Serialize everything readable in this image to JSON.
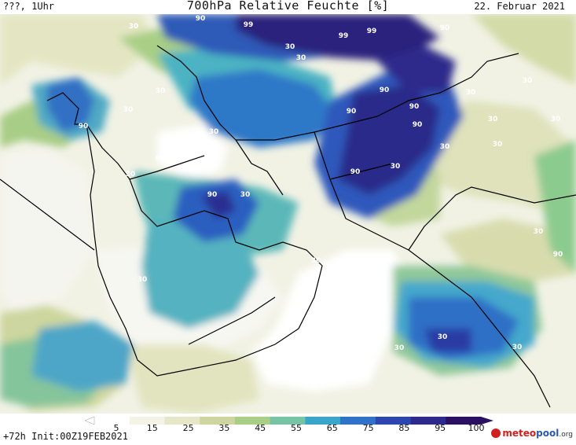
{
  "header": {
    "left": "???, 1Uhr",
    "title": "700hPa Relative Feuchte [%]",
    "date": "22. Februar 2021"
  },
  "colorbar": {
    "ticks": [
      "5",
      "15",
      "25",
      "35",
      "45",
      "55",
      "65",
      "75",
      "85",
      "95",
      "100"
    ],
    "colors": [
      "#ffffff",
      "#f3f3e6",
      "#e6e7c9",
      "#cfd5a0",
      "#a9cf86",
      "#78c3a4",
      "#39a6c9",
      "#2f72c8",
      "#2c46b0",
      "#2e2a8c",
      "#2a1060"
    ]
  },
  "footer": {
    "init": "+72h Init:00Z19FEB2021",
    "logo_part1": "meteo",
    "logo_part2": "pool",
    "logo_part3": ".org"
  },
  "map": {
    "contour_labels": [
      "30",
      "90",
      "99",
      "99",
      "99",
      "90",
      "30",
      "30",
      "30",
      "90",
      "30",
      "30",
      "90",
      "90",
      "90",
      "30",
      "30",
      "30",
      "30",
      "90",
      "30",
      "30",
      "90",
      "90",
      "30",
      "30",
      "30",
      "90",
      "30",
      "30",
      "90",
      "30",
      "30",
      "30",
      "30"
    ]
  }
}
